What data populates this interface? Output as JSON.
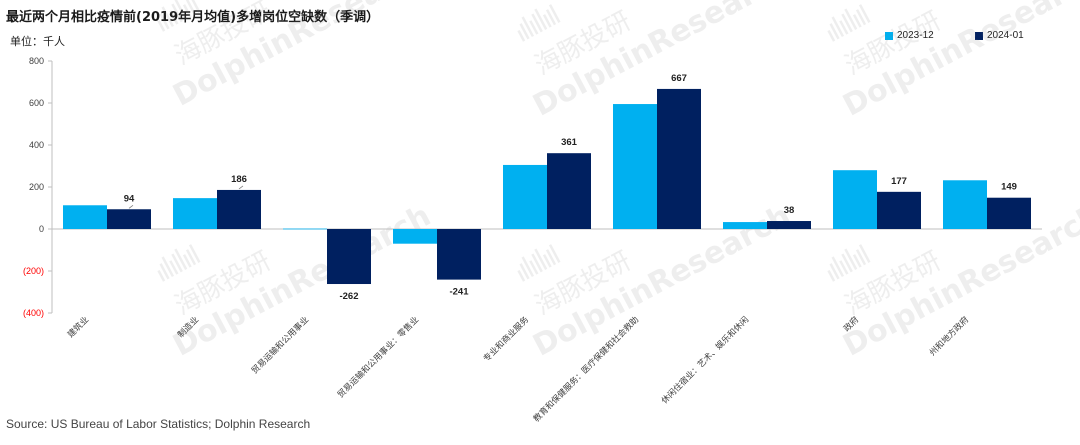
{
  "header": {
    "title": "最近两个月相比疫情前(2019年月均值)多增岗位空缺数（季调）",
    "unit": "单位：千人"
  },
  "footer": {
    "source": "Source: US Bureau of Labor Statistics; Dolphin Research"
  },
  "watermark": {
    "cn": "海豚投研",
    "en": "DolphinResearch"
  },
  "colors": {
    "series1": "#00b0f0",
    "series2": "#002060",
    "negative_tick": "#ff0000"
  },
  "chart_data": {
    "type": "bar",
    "categories": [
      "建筑业",
      "制造业",
      "贸易运输和公用事业",
      "贸易运输和公用事业：零售业",
      "专业和商业服务",
      "教育和保健服务：医疗保健和社会救助",
      "休闲住宿业：艺术、娱乐和休闲",
      "政府",
      "州和地方政府"
    ],
    "series": [
      {
        "name": "2023-12",
        "values": [
          113,
          147,
          2,
          -70,
          305,
          595,
          33,
          280,
          232
        ],
        "labels": [
          "",
          "",
          "",
          "",
          "",
          "",
          "",
          "",
          ""
        ]
      },
      {
        "name": "2024-01",
        "values": [
          94,
          186,
          -262,
          -241,
          361,
          667,
          38,
          177,
          149
        ],
        "labels": [
          "94",
          "186",
          "-262",
          "-241",
          "361",
          "667",
          "38",
          "177",
          "149"
        ]
      }
    ],
    "ylim": [
      -400,
      800
    ],
    "yticks": [
      800,
      600,
      400,
      200,
      0,
      -200,
      -400
    ],
    "ytick_labels": [
      "800",
      "600",
      "400",
      "200",
      "0",
      "(200)",
      "(400)"
    ],
    "legend_position": "top-right",
    "grid": false
  }
}
